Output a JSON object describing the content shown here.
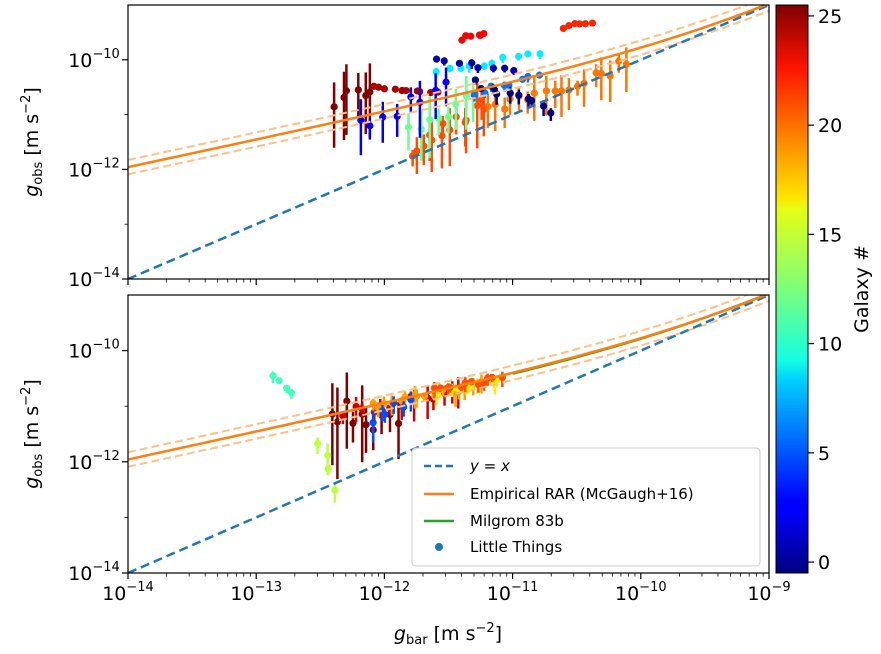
{
  "chart_data": [
    {
      "type": "scatter",
      "panel": "top",
      "x_scale": "log",
      "y_scale": "log",
      "xlim": [
        1e-14,
        1e-09
      ],
      "ylim": [
        1e-14,
        1e-09
      ],
      "x_ticks": [
        "10^-14",
        "10^-13",
        "10^-12",
        "10^-11",
        "10^-10",
        "10^-9"
      ],
      "y_ticks": [
        "10^-14",
        "10^-12",
        "10^-10"
      ],
      "ylabel": "g_obs [m s^-2]",
      "series": [
        {
          "name": "y = x",
          "style": "dashed",
          "color": "#1f77b4",
          "x": [
            1e-14,
            1e-09
          ],
          "y": [
            1e-14,
            1e-09
          ]
        },
        {
          "name": "Empirical RAR (McGaugh+16)",
          "style": "solid",
          "color": "#ff7f0e",
          "x": [
            1e-14,
            1e-13,
            1e-12,
            1e-11,
            1e-10,
            1e-09
          ],
          "y": [
            1.1e-12,
            3.4e-12,
            1.1e-11,
            3.8e-11,
            1.6e-10,
            1.05e-09
          ]
        }
      ],
      "points_sample": [
        {
          "galaxy": 25,
          "x": 4.2e-13,
          "y": 1.8e-11
        },
        {
          "galaxy": 24,
          "x": 8e-13,
          "y": 3e-11
        },
        {
          "galaxy": 22,
          "x": 1.5e-12,
          "y": 2.5e-11
        },
        {
          "galaxy": 21,
          "x": 3e-11,
          "y": 4e-10
        },
        {
          "galaxy": 20,
          "x": 4e-12,
          "y": 5e-12
        },
        {
          "galaxy": 19,
          "x": 1e-11,
          "y": 2e-11
        },
        {
          "galaxy": 18,
          "x": 3e-11,
          "y": 3e-11
        },
        {
          "galaxy": 12,
          "x": 2e-12,
          "y": 1e-11
        },
        {
          "galaxy": 9,
          "x": 4e-12,
          "y": 1.2e-10
        },
        {
          "galaxy": 7,
          "x": 1e-11,
          "y": 1.5e-10
        },
        {
          "galaxy": 3,
          "x": 1e-12,
          "y": 1e-11
        },
        {
          "galaxy": 1,
          "x": 3e-12,
          "y": 1.5e-10
        },
        {
          "galaxy": 0,
          "x": 6e-12,
          "y": 4e-11
        }
      ]
    },
    {
      "type": "scatter",
      "panel": "bottom",
      "x_scale": "log",
      "y_scale": "log",
      "xlim": [
        1e-14,
        1e-09
      ],
      "ylim": [
        1e-14,
        1e-09
      ],
      "x_ticks": [
        "10^-14",
        "10^-13",
        "10^-12",
        "10^-11",
        "10^-10",
        "10^-9"
      ],
      "y_ticks": [
        "10^-14",
        "10^-12",
        "10^-10"
      ],
      "xlabel": "g_bar [m s^-2]",
      "ylabel": "g_obs [m s^-2]",
      "series": [
        {
          "name": "y = x",
          "style": "dashed",
          "color": "#1f77b4",
          "x": [
            1e-14,
            1e-09
          ],
          "y": [
            1e-14,
            1e-09
          ]
        },
        {
          "name": "Empirical RAR (McGaugh+16)",
          "style": "solid",
          "color": "#ff7f0e",
          "x": [
            1e-14,
            1e-13,
            1e-12,
            1e-11,
            1e-10,
            1e-09
          ],
          "y": [
            1.1e-12,
            3.4e-12,
            1.1e-11,
            3.8e-11,
            1.6e-10,
            1.05e-09
          ]
        },
        {
          "name": "Milgrom 83b",
          "style": "solid",
          "color": "#2ca02c",
          "x": [
            1e-11,
            3e-11,
            1e-10,
            3e-10,
            1e-09
          ],
          "y": [
            3.8e-11,
            7.5e-11,
            1.55e-10,
            3.6e-10,
            1.05e-09
          ]
        }
      ],
      "points_sample": [
        {
          "galaxy": 11,
          "x": 1.4e-13,
          "y": 3e-11
        },
        {
          "galaxy": 25,
          "x": 9e-13,
          "y": 3e-12
        },
        {
          "galaxy": 23,
          "x": 1.2e-12,
          "y": 1e-11
        },
        {
          "galaxy": 21,
          "x": 3e-12,
          "y": 2e-11
        },
        {
          "galaxy": 18,
          "x": 4e-12,
          "y": 3e-11
        },
        {
          "galaxy": 16,
          "x": 2e-12,
          "y": 2.5e-11
        },
        {
          "galaxy": 14,
          "x": 3e-13,
          "y": 8e-13
        },
        {
          "galaxy": 5,
          "x": 1.5e-12,
          "y": 1e-11
        }
      ]
    }
  ],
  "legend": {
    "items": [
      {
        "label": "y = x",
        "kind": "dashed",
        "color": "#1f77b4"
      },
      {
        "label": "Empirical RAR (McGaugh+16)",
        "kind": "line",
        "color": "#ff7f0e"
      },
      {
        "label": "Milgrom 83b",
        "kind": "line",
        "color": "#2ca02c"
      },
      {
        "label": "Little Things",
        "kind": "point",
        "color": "#1f77b4"
      }
    ]
  },
  "colorbar": {
    "label": "Galaxy #",
    "range": [
      -0.5,
      25.5
    ],
    "ticks": [
      "0",
      "5",
      "10",
      "15",
      "20",
      "25"
    ],
    "colormap": "jet"
  },
  "colors": {
    "yx": "#1f77b4",
    "rar": "#ff7f0e",
    "milgrom": "#2ca02c"
  }
}
